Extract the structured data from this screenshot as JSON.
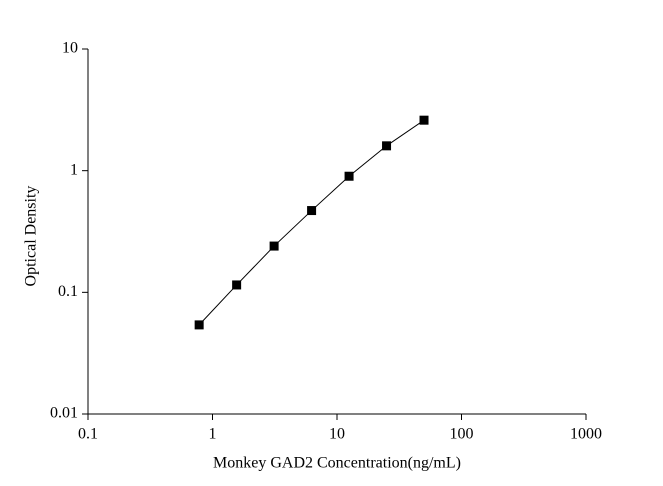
{
  "chart_data": {
    "type": "scatter",
    "x_label": "Monkey GAD2 Concentration(ng/mL)",
    "y_label": "Optical Density",
    "x": [
      0.78125,
      1.5625,
      3.125,
      6.25,
      12.5,
      25,
      50
    ],
    "series": [
      {
        "color": "#000000",
        "values": [
          0.054,
          0.115,
          0.24,
          0.47,
          0.9,
          1.6,
          2.6
        ]
      }
    ],
    "xlim": [
      0.1,
      1000
    ],
    "ylim": [
      0.01,
      10
    ],
    "xticks": [
      0.1,
      1,
      10,
      100,
      1000
    ],
    "yticks": [
      0.01,
      0.1,
      1,
      10
    ],
    "xscale": "log",
    "yscale": "log",
    "line": true,
    "grid": false
  }
}
